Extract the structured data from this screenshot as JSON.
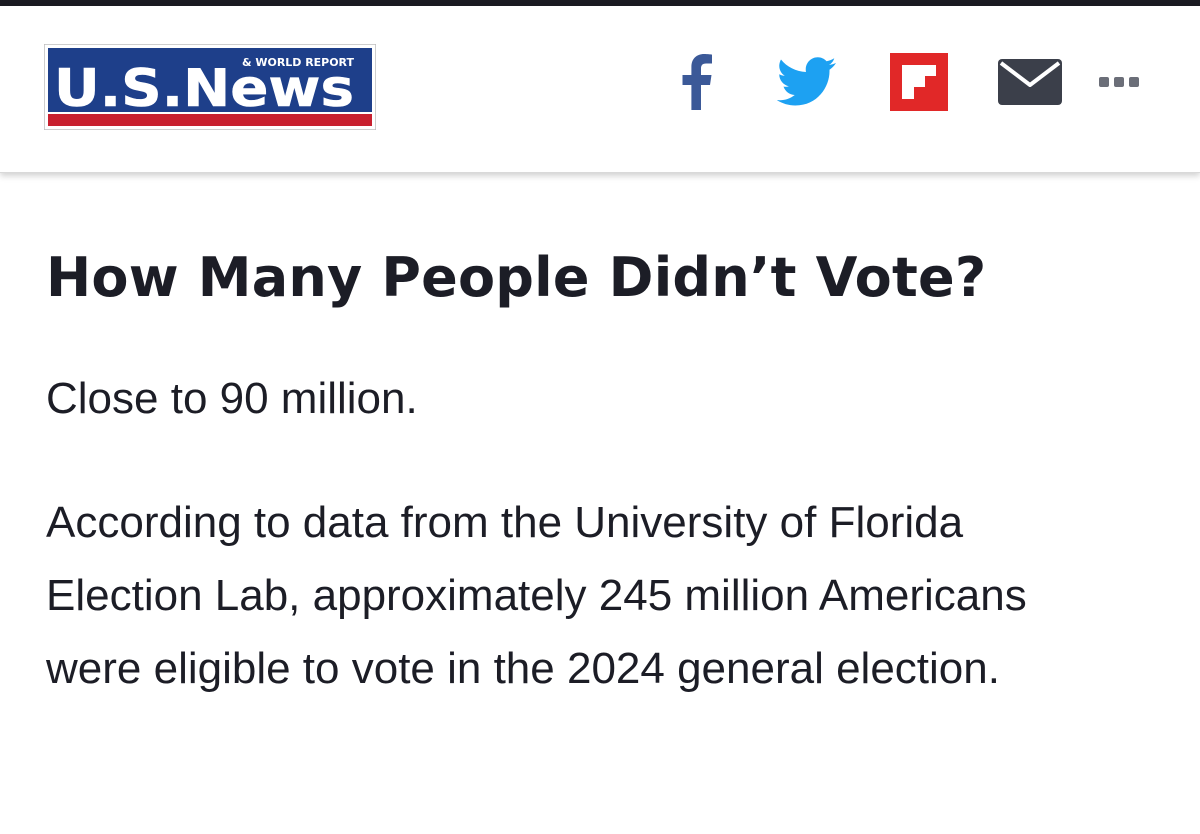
{
  "header": {
    "logo": {
      "main_text": "U.S.News",
      "sub_text": "& WORLD REPORT"
    },
    "share": [
      {
        "name": "facebook",
        "icon": "facebook-icon",
        "color": "#3b5998"
      },
      {
        "name": "twitter",
        "icon": "twitter-bird-icon",
        "color": "#1da1f2"
      },
      {
        "name": "flipboard",
        "icon": "flipboard-icon",
        "color": "#e12828"
      },
      {
        "name": "email",
        "icon": "envelope-icon",
        "color": "#3b3f4a"
      },
      {
        "name": "more",
        "icon": "more-dots-icon",
        "color": "#6b6e78"
      }
    ]
  },
  "article": {
    "title": "How Many People Didn’t Vote?",
    "paragraphs": [
      "Close to 90 million.",
      "According to data from the University of Florida Election Lab, approximately 245 million Americans were eligible to vote in the 2024 general election."
    ]
  },
  "colors": {
    "logo_blue": "#1e3f8a",
    "logo_red": "#c8202f",
    "text": "#1c1d26"
  }
}
